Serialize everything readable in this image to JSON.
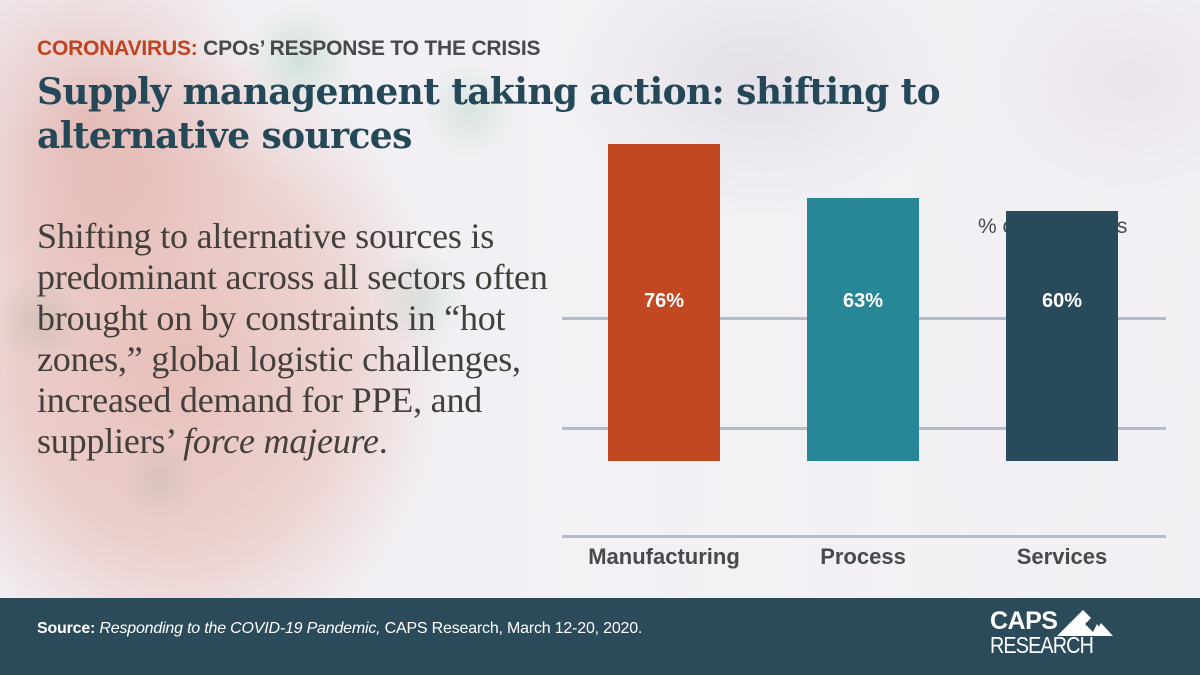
{
  "header": {
    "kicker_accent": "CORONAVIRUS:",
    "kicker_rest": " CPOs’ RESPONSE TO THE CRISIS",
    "title_line1": "Supply management taking action: shifting to",
    "title_line2": "alternative sources"
  },
  "body": {
    "text_main": "Shifting to alternative sources is predominant across all sectors often brought on by constraints in “hot zones,” global logistic challenges, increased demand for PPE, and suppliers’ ",
    "text_italic": "force majeure",
    "text_end": "."
  },
  "chart_data": {
    "type": "bar",
    "title": "",
    "unit_label": "% of companies",
    "categories": [
      "Manufacturing",
      "Process",
      "Services"
    ],
    "values": [
      76,
      63,
      60
    ],
    "value_labels": [
      "76%",
      "63%",
      "60%"
    ],
    "colors": [
      "#c24821",
      "#288796",
      "#284a5a"
    ],
    "xlabel": "",
    "ylabel": "% of companies",
    "ylim": [
      0,
      80
    ],
    "grid": true,
    "legend": "none"
  },
  "footer": {
    "source_label": "Source:",
    "source_title": "Responding to the COVID-19 Pandemic,",
    "source_rest": " CAPS Research, March 12-20, 2020.",
    "logo_top": "CAPS",
    "logo_bottom": "RESEARCH",
    "background": "#2b4a5a"
  }
}
